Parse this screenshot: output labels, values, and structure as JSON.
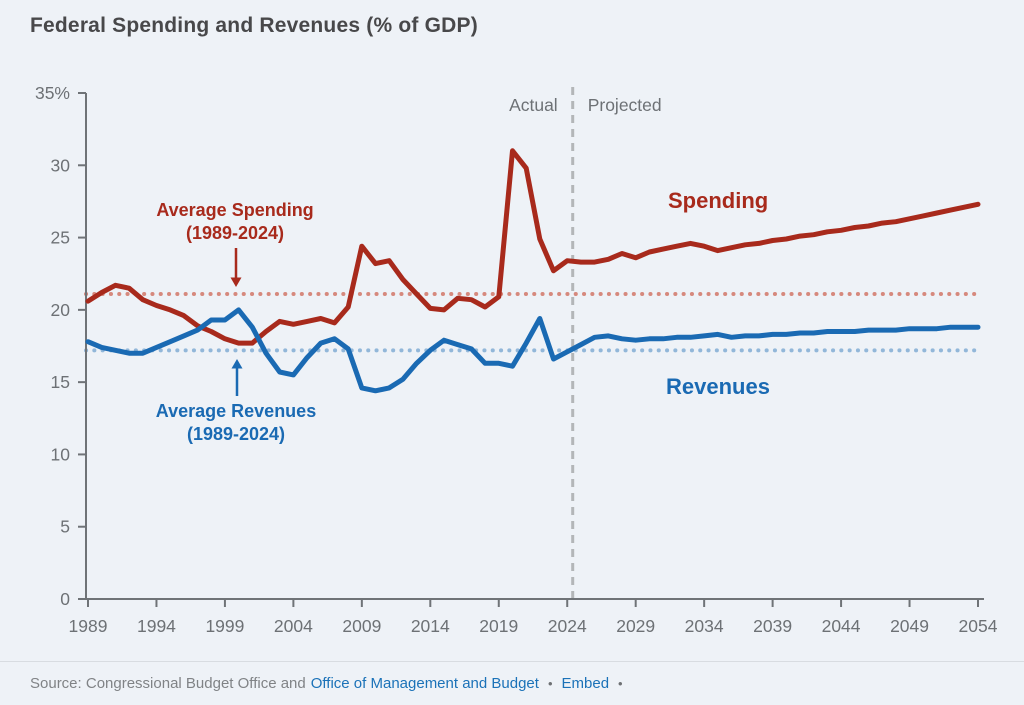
{
  "header": {
    "title": "Federal Spending and Revenues (% of GDP)"
  },
  "chart_data": {
    "type": "line",
    "title": "Federal Spending and Revenues (% of GDP)",
    "xlabel": "",
    "ylabel": "",
    "x_range": [
      1989,
      2054
    ],
    "y_range": [
      0,
      35
    ],
    "grid": false,
    "x_ticks": [
      1989,
      1994,
      1999,
      2004,
      2009,
      2014,
      2019,
      2024,
      2029,
      2034,
      2039,
      2044,
      2049,
      2054
    ],
    "y_ticks": [
      {
        "value": 0,
        "label": "0"
      },
      {
        "value": 5,
        "label": "5"
      },
      {
        "value": 10,
        "label": "10"
      },
      {
        "value": 15,
        "label": "15"
      },
      {
        "value": 20,
        "label": "20"
      },
      {
        "value": 25,
        "label": "25"
      },
      {
        "value": 30,
        "label": "30"
      },
      {
        "value": 35,
        "label": "35%"
      }
    ],
    "divider": {
      "year": 2024.4,
      "left_label": "Actual",
      "right_label": "Projected",
      "color": "#b3b6b8"
    },
    "series": [
      {
        "name": "Spending",
        "color": "#a82a1c",
        "start_year": 1989,
        "values": [
          20.6,
          21.2,
          21.7,
          21.5,
          20.7,
          20.3,
          20.0,
          19.6,
          18.9,
          18.5,
          18.0,
          17.7,
          17.7,
          18.5,
          19.2,
          19.0,
          19.2,
          19.4,
          19.1,
          20.2,
          24.4,
          23.2,
          23.4,
          22.1,
          21.1,
          20.1,
          20.0,
          20.8,
          20.7,
          20.2,
          20.9,
          31.0,
          29.8,
          24.9,
          22.7,
          23.4,
          23.3,
          23.3,
          23.5,
          23.9,
          23.6,
          24.0,
          24.2,
          24.4,
          24.6,
          24.4,
          24.1,
          24.3,
          24.5,
          24.6,
          24.8,
          24.9,
          25.1,
          25.2,
          25.4,
          25.5,
          25.7,
          25.8,
          26.0,
          26.1,
          26.3,
          26.5,
          26.7,
          26.9,
          27.1,
          27.3
        ]
      },
      {
        "name": "Revenues",
        "color": "#1a6ab3",
        "start_year": 1989,
        "values": [
          17.8,
          17.4,
          17.2,
          17.0,
          17.0,
          17.4,
          17.8,
          18.2,
          18.6,
          19.3,
          19.3,
          20.0,
          18.8,
          17.0,
          15.7,
          15.5,
          16.7,
          17.7,
          18.0,
          17.3,
          14.6,
          14.4,
          14.6,
          15.2,
          16.3,
          17.2,
          17.9,
          17.6,
          17.3,
          16.3,
          16.3,
          16.1,
          17.7,
          19.4,
          16.6,
          17.1,
          17.6,
          18.1,
          18.2,
          18.0,
          17.9,
          18.0,
          18.0,
          18.1,
          18.1,
          18.2,
          18.3,
          18.1,
          18.2,
          18.2,
          18.3,
          18.3,
          18.4,
          18.4,
          18.5,
          18.5,
          18.5,
          18.6,
          18.6,
          18.6,
          18.7,
          18.7,
          18.7,
          18.8,
          18.8,
          18.8
        ]
      }
    ],
    "reference_lines": [
      {
        "label": "Average Spending",
        "sublabel": "(1989-2024)",
        "value": 21.1,
        "dot_color": "#d6897d",
        "text_color": "#a82a1c"
      },
      {
        "label": "Average Revenues",
        "sublabel": "(1989-2024)",
        "value": 17.2,
        "dot_color": "#92b7d9",
        "text_color": "#1a6ab3"
      }
    ],
    "axis_color": "#6f7377",
    "tick_text_color": "#6d7175",
    "background": "#eef2f7"
  },
  "footer": {
    "source_prefix": "Source: Congressional Budget Office and",
    "source_link": "Office of Management and Budget",
    "bullet": "•",
    "embed_label": "Embed"
  }
}
